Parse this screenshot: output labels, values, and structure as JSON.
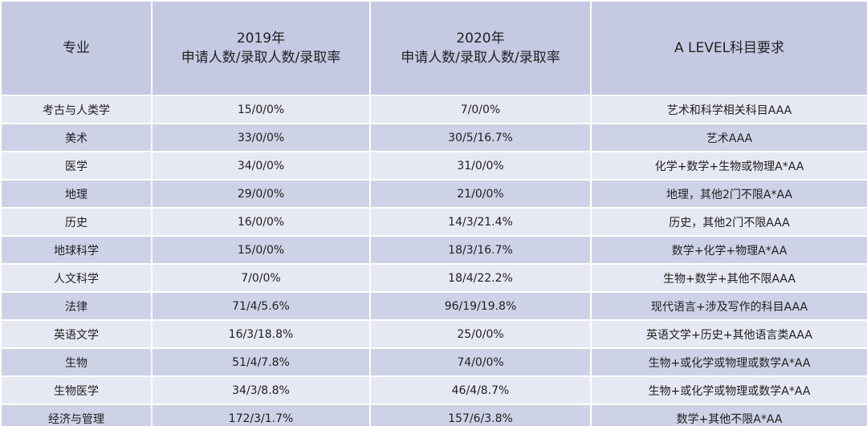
{
  "table": {
    "headers": {
      "major": "专业",
      "y2019_year": "2019年",
      "y2019_sub": "申请人数/录取人数/录取率",
      "y2020_year": "2020年",
      "y2020_sub": "申请人数/录取人数/录取率",
      "alevel": "A LEVEL科目要求"
    },
    "rows": [
      {
        "major": "考古与人类学",
        "y2019": "15/0/0%",
        "y2020": "7/0/0%",
        "alevel": "艺术和科学相关科目AAA"
      },
      {
        "major": "美术",
        "y2019": "33/0/0%",
        "y2020": "30/5/16.7%",
        "alevel": "艺术AAA"
      },
      {
        "major": "医学",
        "y2019": "34/0/0%",
        "y2020": "31/0/0%",
        "alevel": "化学+数学+生物或物理A*AA"
      },
      {
        "major": "地理",
        "y2019": "29/0/0%",
        "y2020": "21/0/0%",
        "alevel": "地理，其他2门不限A*AA"
      },
      {
        "major": "历史",
        "y2019": "16/0/0%",
        "y2020": "14/3/21.4%",
        "alevel": "历史，其他2门不限AAA"
      },
      {
        "major": "地球科学",
        "y2019": "15/0/0%",
        "y2020": "18/3/16.7%",
        "alevel": "数学+化学+物理A*AA"
      },
      {
        "major": "人文科学",
        "y2019": "7/0/0%",
        "y2020": "18/4/22.2%",
        "alevel": "生物+数学+其他不限AAA"
      },
      {
        "major": "法律",
        "y2019": "71/4/5.6%",
        "y2020": "96/19/19.8%",
        "alevel": "现代语言+涉及写作的科目AAA"
      },
      {
        "major": "英语文学",
        "y2019": "16/3/18.8%",
        "y2020": "25/0/0%",
        "alevel": "英语文学+历史+其他语言类AAA"
      },
      {
        "major": "生物",
        "y2019": "51/4/7.8%",
        "y2020": "74/0/0%",
        "alevel": "生物+或化学或物理或数学A*AA"
      },
      {
        "major": "生物医学",
        "y2019": "34/3/8.8%",
        "y2020": "46/4/8.7%",
        "alevel": "生物+或化学或物理或数学A*AA"
      },
      {
        "major": "经济与管理",
        "y2019": "172/3/1.7%",
        "y2020": "157/6/3.8%",
        "alevel": "数学+其他不限A*AA"
      }
    ]
  }
}
